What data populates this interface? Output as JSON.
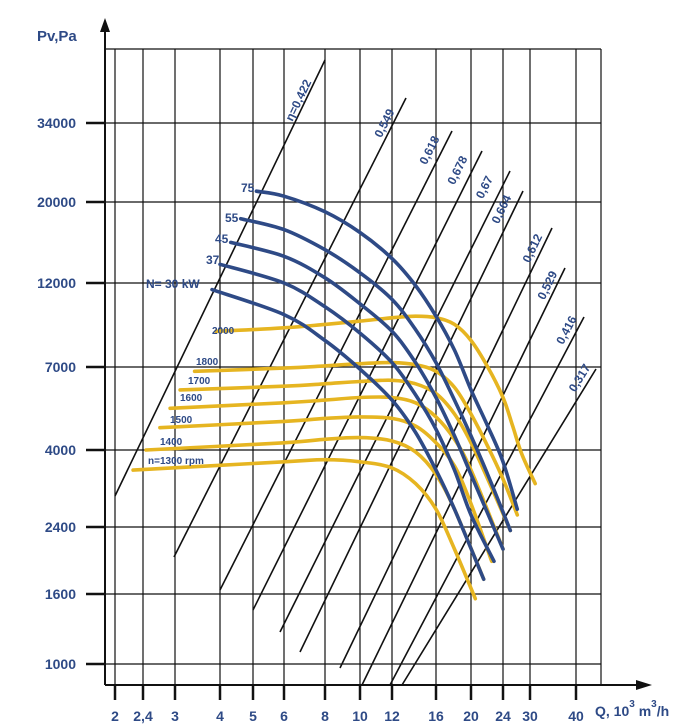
{
  "chart_data": {
    "type": "line",
    "title": "",
    "xlabel": "Q, 10^3 m^3/h",
    "ylabel": "Pv,Pa",
    "x_scale": "log",
    "y_scale": "log",
    "grid": true,
    "xlim": [
      2,
      48
    ],
    "ylim": [
      850,
      60000
    ],
    "x_ticks": [
      "2",
      "2,4",
      "3",
      "4",
      "5",
      "6",
      "8",
      "10",
      "12",
      "16",
      "20",
      "24",
      "30",
      "40"
    ],
    "y_ticks": [
      "34000",
      "20000",
      "12000",
      "7000",
      "4000",
      "2400",
      "1600",
      "1000"
    ],
    "speed_curves": {
      "color": "#e6b521",
      "unit": "rpm",
      "series": [
        {
          "name": "2000",
          "label": "2000",
          "x": [
            3.9,
            6,
            8,
            10,
            12,
            14,
            16,
            18,
            20,
            22,
            24,
            26,
            28,
            31
          ],
          "y": [
            8800,
            9000,
            9200,
            9400,
            9600,
            9700,
            9600,
            9200,
            8300,
            7000,
            5700,
            4700,
            3900,
            3200
          ]
        },
        {
          "name": "1800",
          "label": "1800",
          "x": [
            3.4,
            6,
            8,
            10,
            12,
            14,
            16,
            18,
            20,
            22,
            24,
            27
          ],
          "y": [
            6800,
            6950,
            7050,
            7150,
            7200,
            7100,
            6800,
            6100,
            5100,
            4100,
            3300,
            2600
          ]
        },
        {
          "name": "1700",
          "label": "1700",
          "x": [
            3.1,
            6,
            8,
            10,
            12,
            14,
            16,
            18,
            20,
            22,
            25.5
          ],
          "y": [
            6000,
            6150,
            6250,
            6350,
            6400,
            6250,
            5850,
            5100,
            4200,
            3300,
            2350
          ]
        },
        {
          "name": "1600",
          "label": "1600",
          "x": [
            2.9,
            6,
            8,
            10,
            12,
            14,
            16,
            18,
            20,
            24
          ],
          "y": [
            5300,
            5500,
            5600,
            5700,
            5700,
            5500,
            5000,
            4300,
            3500,
            2100
          ]
        },
        {
          "name": "1500",
          "label": "1500",
          "x": [
            2.7,
            6,
            8,
            10,
            12,
            14,
            16,
            18,
            20,
            22.5
          ],
          "y": [
            4650,
            4850,
            4950,
            5000,
            4950,
            4700,
            4200,
            3600,
            2800,
            1950
          ]
        },
        {
          "name": "1400",
          "label": "1400",
          "x": [
            2.45,
            6,
            8,
            10,
            12,
            14,
            16,
            18,
            21.5
          ],
          "y": [
            4000,
            4200,
            4300,
            4350,
            4250,
            3950,
            3400,
            2700,
            1750
          ]
        },
        {
          "name": "1300",
          "label": "n=1300 rpm",
          "x": [
            2.25,
            6,
            8,
            10,
            12,
            14,
            16,
            18,
            20.5
          ],
          "y": [
            3500,
            3700,
            3750,
            3700,
            3550,
            3200,
            2700,
            2100,
            1550
          ]
        }
      ]
    },
    "power_curves": {
      "color": "#2e4a86",
      "unit": "kW",
      "series": [
        {
          "name": "75",
          "label": "75",
          "x": [
            5.1,
            6,
            8,
            10,
            12,
            14,
            16,
            18,
            20,
            22,
            24,
            27
          ],
          "y": [
            21500,
            20800,
            18800,
            16500,
            14000,
            11800,
            9700,
            7800,
            6000,
            4700,
            3700,
            2700
          ]
        },
        {
          "name": "55",
          "label": "55",
          "x": [
            4.6,
            6,
            8,
            10,
            12,
            14,
            16,
            18,
            20,
            22,
            25.5
          ],
          "y": [
            18000,
            16800,
            14800,
            12800,
            10800,
            8900,
            7200,
            5600,
            4400,
            3400,
            2350
          ]
        },
        {
          "name": "45",
          "label": "45",
          "x": [
            4.3,
            6,
            8,
            10,
            12,
            14,
            16,
            18,
            20,
            24
          ],
          "y": [
            15500,
            14200,
            12400,
            10500,
            8800,
            7200,
            5700,
            4400,
            3400,
            2100
          ]
        },
        {
          "name": "37",
          "label": "37",
          "x": [
            4.0,
            6,
            8,
            10,
            12,
            14,
            16,
            18,
            20,
            22.8
          ],
          "y": [
            13500,
            12000,
            10300,
            8700,
            7200,
            5800,
            4600,
            3500,
            2600,
            1950
          ]
        },
        {
          "name": "30",
          "label": "N= 30 kW",
          "x": [
            3.8,
            6,
            8,
            10,
            12,
            14,
            16,
            18,
            21.5
          ],
          "y": [
            11500,
            9800,
            8300,
            6900,
            5600,
            4500,
            3500,
            2700,
            1750
          ]
        }
      ]
    },
    "efficiency_lines": {
      "color": "#111111",
      "series": [
        {
          "name": "0.422",
          "label": "η=0,422"
        },
        {
          "name": "0.549",
          "label": "0,549"
        },
        {
          "name": "0.618",
          "label": "0,618"
        },
        {
          "name": "0.678",
          "label": "0,678"
        },
        {
          "name": "0.67",
          "label": "0,67"
        },
        {
          "name": "0.664",
          "label": "0,664"
        },
        {
          "name": "0.612",
          "label": "0,612"
        },
        {
          "name": "0.529",
          "label": "0,529"
        },
        {
          "name": "0.416",
          "label": "0,416"
        },
        {
          "name": "0.317",
          "label": "0,317"
        }
      ]
    }
  },
  "axes": {
    "y_title": "Pv,Pa",
    "x_title_q": "Q, 10",
    "x_title_sup1": "3",
    "x_title_m": " m",
    "x_title_sup2": "3",
    "x_title_h": "/h"
  }
}
